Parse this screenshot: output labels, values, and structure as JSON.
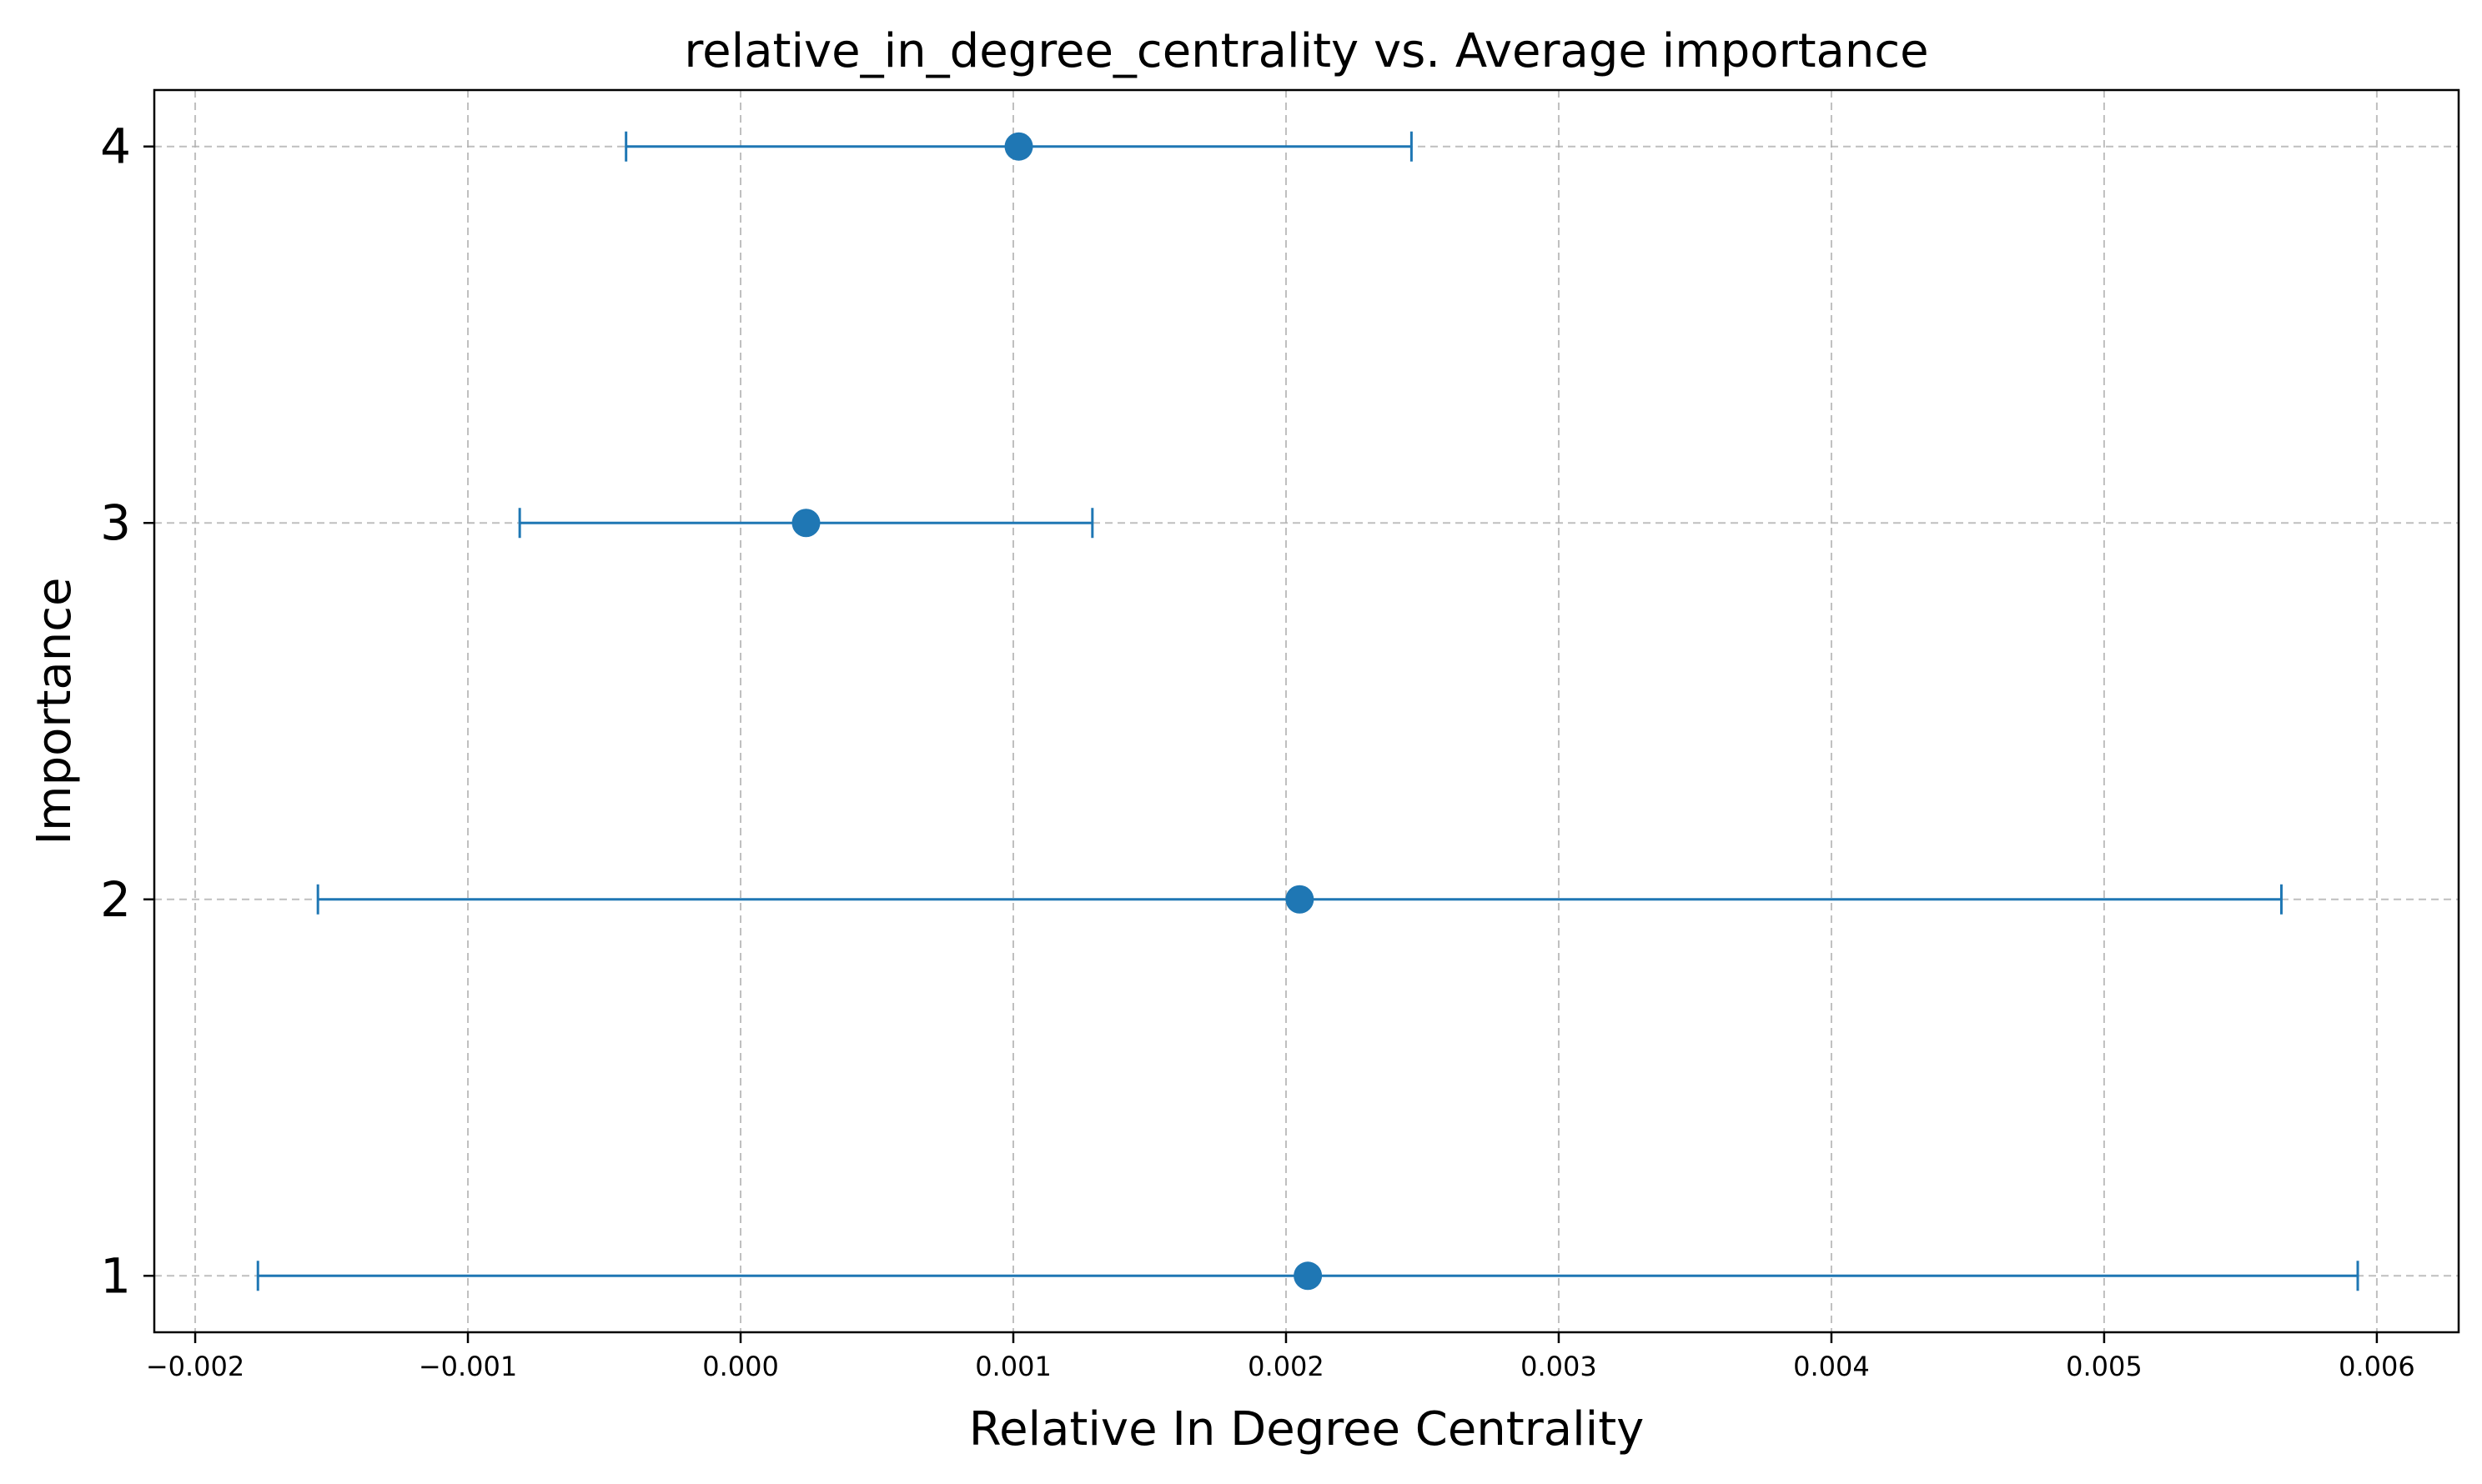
{
  "chart_data": {
    "type": "errorbar",
    "title": "relative_in_degree_centrality vs. Average importance",
    "xlabel": "Relative In Degree Centrality",
    "ylabel": "Importance",
    "xlim": [
      -0.00215,
      0.0063
    ],
    "ylim": [
      0.85,
      4.15
    ],
    "xticks": [
      -0.002,
      -0.001,
      0.0,
      0.001,
      0.002,
      0.003,
      0.004,
      0.005,
      0.006
    ],
    "xtick_labels": [
      "−0.002",
      "−0.001",
      "0.000",
      "0.001",
      "0.002",
      "0.003",
      "0.004",
      "0.005",
      "0.006"
    ],
    "yticks": [
      1,
      2,
      3,
      4
    ],
    "ytick_labels": [
      "1",
      "2",
      "3",
      "4"
    ],
    "grid": true,
    "color": "#1f77b4",
    "points": [
      {
        "y": 4,
        "x": 0.00102,
        "xerr_low": -0.00042,
        "xerr_high": 0.00246
      },
      {
        "y": 3,
        "x": 0.00024,
        "xerr_low": -0.00081,
        "xerr_high": 0.00129
      },
      {
        "y": 2,
        "x": 0.00205,
        "xerr_low": -0.00155,
        "xerr_high": 0.00565
      },
      {
        "y": 1,
        "x": 0.00208,
        "xerr_low": -0.00177,
        "xerr_high": 0.00593
      }
    ]
  }
}
